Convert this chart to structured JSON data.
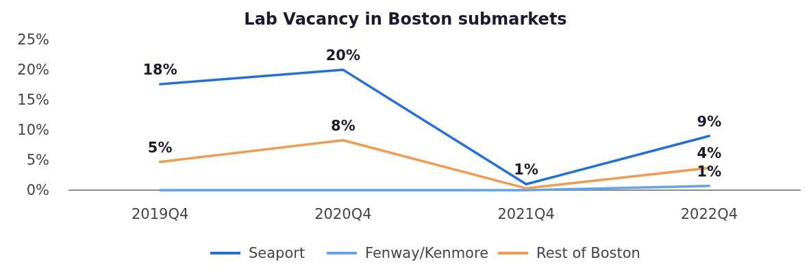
{
  "chart_data": {
    "type": "line",
    "title": "Lab Vacancy in Boston submarkets",
    "categories": [
      "2019Q4",
      "2020Q4",
      "2021Q4",
      "2022Q4"
    ],
    "series": [
      {
        "name": "Seaport",
        "color": "#1f6fe0",
        "values": [
          17.6,
          20,
          1,
          9
        ],
        "value_labels": [
          "18%",
          "20%",
          "1%",
          "9%"
        ]
      },
      {
        "name": "Fenway/Kenmore",
        "color": "#5ea3f2",
        "values": [
          0,
          0,
          0,
          0.7
        ],
        "value_labels": [
          null,
          null,
          null,
          "1%"
        ]
      },
      {
        "name": "Rest of Boston",
        "color": "#f5994a",
        "values": [
          4.7,
          8.3,
          0.3,
          3.7
        ],
        "value_labels": [
          "5%",
          "8%",
          null,
          "4%"
        ]
      }
    ],
    "ylim": [
      0,
      25
    ],
    "yticks": [
      {
        "value": 0,
        "label": "0%"
      },
      {
        "value": 5,
        "label": "5%"
      },
      {
        "value": 10,
        "label": "10%"
      },
      {
        "value": 15,
        "label": "15%"
      },
      {
        "value": 20,
        "label": "20%"
      },
      {
        "value": 25,
        "label": "25%"
      }
    ],
    "grid": false,
    "legend": "bottom",
    "marker": "none",
    "line_style": "solid"
  }
}
